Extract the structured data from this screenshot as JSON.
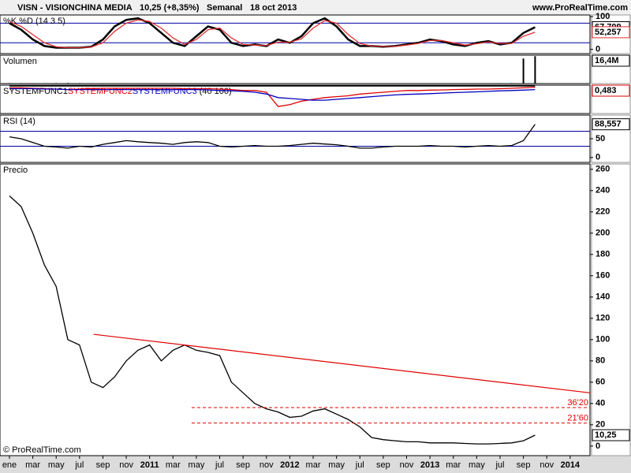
{
  "header": {
    "symbol": "VISN - VISIONCHINA MEDIA",
    "price": "10,25 (+8,35%)",
    "period": "Semanal",
    "date": "18 oct 2013",
    "site": "www.ProRealTime.com",
    "footer": "© ProRealTime.com"
  },
  "chart_data": [
    {
      "type": "line",
      "title": "%K %D (14 3 5)",
      "ylim": [
        -13,
        105
      ],
      "yticks": [
        0,
        100
      ],
      "levels": [
        20,
        80
      ],
      "level_color": "#0000a0",
      "series": [
        {
          "color": "#000000",
          "values": [
            80,
            60,
            30,
            10,
            5,
            5,
            5,
            8,
            30,
            70,
            90,
            95,
            80,
            50,
            20,
            10,
            40,
            70,
            60,
            20,
            10,
            15,
            10,
            30,
            20,
            40,
            80,
            95,
            70,
            30,
            10,
            10,
            8,
            10,
            15,
            20,
            30,
            25,
            15,
            10,
            20,
            25,
            15,
            20,
            50,
            67.709
          ],
          "last_label": "67,709"
        },
        {
          "color": "#e03030",
          "values": [
            85,
            70,
            45,
            20,
            8,
            5,
            5,
            7,
            20,
            55,
            80,
            90,
            85,
            65,
            35,
            15,
            30,
            60,
            65,
            35,
            15,
            13,
            12,
            22,
            22,
            32,
            65,
            88,
            80,
            45,
            18,
            10,
            9,
            9,
            13,
            18,
            27,
            27,
            20,
            13,
            17,
            23,
            18,
            18,
            40,
            52.257
          ],
          "last_label": "52,257"
        }
      ]
    },
    {
      "type": "bar",
      "title": "Volumen",
      "ylim": [
        0,
        17000000
      ],
      "series": [
        {
          "color": "#000000",
          "values": [
            300000,
            300000,
            250000,
            250000,
            300000,
            400000,
            300000,
            250000,
            250000,
            250000,
            250000,
            250000,
            250000,
            250000,
            250000,
            250000,
            250000,
            250000,
            250000,
            300000,
            250000,
            250000,
            250000,
            250000,
            250000,
            250000,
            250000,
            250000,
            250000,
            250000,
            250000,
            250000,
            250000,
            250000,
            250000,
            250000,
            250000,
            250000,
            250000,
            250000,
            250000,
            250000,
            250000,
            300000,
            15000000,
            16400000
          ],
          "last_label": "16,4M"
        }
      ]
    },
    {
      "type": "line",
      "title": "(40 100)",
      "ylim": [
        -1,
        0.6
      ],
      "series": [
        {
          "name": "SYSTEMFUNC1",
          "color": "#000000",
          "values": [
            0.55,
            0.55,
            0.55,
            0.55,
            0.55,
            0.55,
            0.55,
            0.55,
            0.55,
            0.55,
            0.55,
            0.55,
            0.55,
            0.55,
            0.55,
            0.55,
            0.55,
            0.55,
            0.55,
            0.55,
            0.55,
            0.55,
            0.55,
            0.55,
            0.55,
            0.55,
            0.55,
            0.55,
            0.55,
            0.55,
            0.55,
            0.55,
            0.55,
            0.55,
            0.55,
            0.55,
            0.55,
            0.55,
            0.55,
            0.55,
            0.55,
            0.55,
            0.55,
            0.55,
            0.55,
            0.55
          ]
        },
        {
          "name": "SYSTEMFUNC2",
          "color": "#e00000",
          "values": [
            0.45,
            0.45,
            0.42,
            0.4,
            0.38,
            0.35,
            0.38,
            0.4,
            0.42,
            0.42,
            0.42,
            0.42,
            0.42,
            0.42,
            0.42,
            0.4,
            0.4,
            0.4,
            0.38,
            0.35,
            0.3,
            0.3,
            0.2,
            -0.6,
            -0.5,
            -0.3,
            -0.2,
            -0.1,
            -0.05,
            0,
            0.1,
            0.15,
            0.2,
            0.25,
            0.3,
            0.3,
            0.32,
            0.33,
            0.35,
            0.36,
            0.38,
            0.38,
            0.4,
            0.42,
            0.45,
            0.483
          ],
          "last_label": "0,483"
        },
        {
          "name": "SYSTEMFUNC3",
          "color": "#0000c0",
          "values": [
            0.4,
            0.4,
            0.4,
            0.38,
            0.38,
            0.35,
            0.35,
            0.35,
            0.35,
            0.35,
            0.35,
            0.35,
            0.35,
            0.35,
            0.35,
            0.35,
            0.35,
            0.33,
            0.3,
            0.28,
            0.25,
            0.2,
            0.1,
            -0.1,
            -0.15,
            -0.2,
            -0.25,
            -0.25,
            -0.2,
            -0.15,
            -0.1,
            -0.05,
            0,
            0.05,
            0.08,
            0.1,
            0.12,
            0.15,
            0.18,
            0.2,
            0.22,
            0.25,
            0.28,
            0.3,
            0.32,
            0.35
          ]
        }
      ]
    },
    {
      "type": "line",
      "title": "RSI (14)",
      "ylim": [
        -13,
        113
      ],
      "yticks": [
        0,
        50
      ],
      "levels": [
        30,
        70
      ],
      "level_color": "#0000a0",
      "series": [
        {
          "color": "#000000",
          "values": [
            55,
            50,
            40,
            30,
            28,
            25,
            30,
            28,
            35,
            40,
            45,
            42,
            40,
            38,
            35,
            40,
            42,
            40,
            30,
            28,
            30,
            32,
            30,
            30,
            32,
            35,
            38,
            36,
            34,
            30,
            25,
            25,
            28,
            30,
            30,
            30,
            32,
            30,
            30,
            28,
            30,
            32,
            30,
            32,
            45,
            88.557
          ],
          "last_label": "88,557"
        }
      ]
    },
    {
      "type": "line",
      "title": "Precio",
      "xlim": [
        -0.81,
        49.7
      ],
      "ylim": [
        -9,
        265
      ],
      "yticks": [
        0,
        20,
        40,
        60,
        80,
        100,
        120,
        140,
        160,
        180,
        200,
        220,
        240,
        260
      ],
      "xticks": [
        {
          "value": 0,
          "label": "ene"
        },
        {
          "value": 2,
          "label": "mar"
        },
        {
          "value": 4,
          "label": "may"
        },
        {
          "value": 6,
          "label": "jul"
        },
        {
          "value": 8,
          "label": "sep"
        },
        {
          "value": 10,
          "label": "nov"
        },
        {
          "value": 12,
          "label": "2011"
        },
        {
          "value": 14,
          "label": "mar"
        },
        {
          "value": 16,
          "label": "may"
        },
        {
          "value": 18,
          "label": "jul"
        },
        {
          "value": 20,
          "label": "sep"
        },
        {
          "value": 22,
          "label": "nov"
        },
        {
          "value": 24,
          "label": "2012"
        },
        {
          "value": 26,
          "label": "mar"
        },
        {
          "value": 28,
          "label": "may"
        },
        {
          "value": 30,
          "label": "jul"
        },
        {
          "value": 32,
          "label": "sep"
        },
        {
          "value": 34,
          "label": "nov"
        },
        {
          "value": 36,
          "label": "2013"
        },
        {
          "value": 38,
          "label": "mar"
        },
        {
          "value": 40,
          "label": "may"
        },
        {
          "value": 42,
          "label": "jul"
        },
        {
          "value": 44,
          "label": "sep"
        },
        {
          "value": 46,
          "label": "nov"
        },
        {
          "value": 48,
          "label": "2014"
        }
      ],
      "x": [
        0,
        1,
        2,
        3,
        4,
        5,
        6,
        7,
        8,
        9,
        10,
        11,
        12,
        13,
        14,
        15,
        16,
        17,
        18,
        19,
        20,
        21,
        22,
        23,
        24,
        25,
        26,
        27,
        28,
        29,
        30,
        31,
        32,
        33,
        34,
        35,
        36,
        37,
        38,
        39,
        40,
        41,
        42,
        43,
        44,
        45
      ],
      "series": [
        {
          "color": "#000000",
          "values": [
            235,
            225,
            200,
            170,
            150,
            100,
            95,
            60,
            55,
            65,
            80,
            90,
            95,
            80,
            90,
            95,
            90,
            88,
            85,
            60,
            50,
            40,
            35,
            32,
            27,
            28,
            33,
            35,
            30,
            25,
            18,
            8,
            6,
            5,
            4,
            4,
            3,
            3,
            3,
            2.5,
            2,
            2,
            2.5,
            3,
            5,
            10.25
          ],
          "last_label": "10,25"
        }
      ],
      "trendline": {
        "color": "#e00000",
        "x": [
          7.2,
          49.7
        ],
        "y": [
          105,
          50
        ]
      },
      "hlines": [
        {
          "value": 36.2,
          "label": "36'20",
          "from": 15.6
        },
        {
          "value": 21.6,
          "label": "21'60",
          "from": 15.6
        }
      ],
      "hline_color": "#e00000"
    }
  ]
}
